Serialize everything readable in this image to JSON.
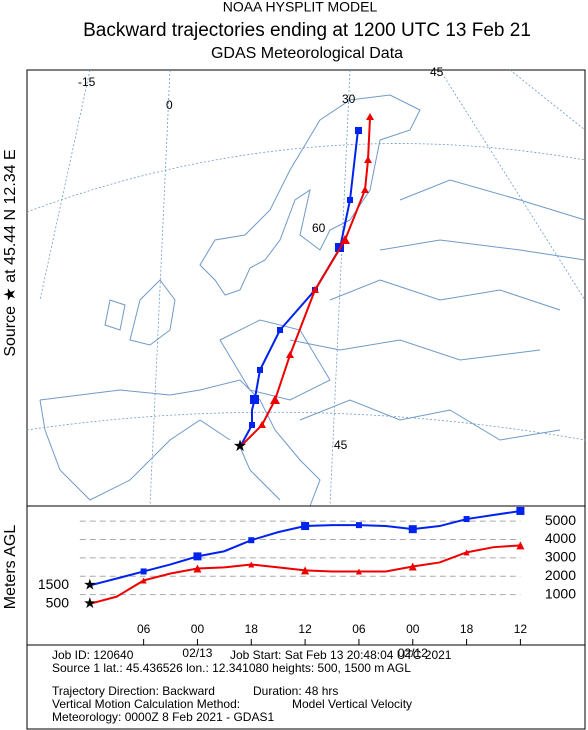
{
  "header": {
    "model": "NOAA HYSPLIT MODEL",
    "title": "Backward trajectories ending at 1200 UTC 13 Feb 21",
    "subtitle": "GDAS Meteorological Data"
  },
  "source_label": "Source ★ at  45.44 N  12.34 E",
  "map": {
    "grid_labels": [
      "-15",
      "0",
      "30",
      "45",
      "60",
      "45"
    ]
  },
  "chart_data": {
    "type": "line",
    "y_label": "Meters AGL",
    "x": [
      0,
      3,
      6,
      9,
      12,
      15,
      18,
      21,
      24,
      27,
      30,
      33,
      36,
      39,
      42,
      45,
      48
    ],
    "xlim": [
      -7,
      55.2
    ],
    "xticks": [
      {
        "value": 6,
        "label": "06"
      },
      {
        "value": 12,
        "label": "00"
      },
      {
        "value": 18,
        "label": "18"
      },
      {
        "value": 24,
        "label": "12"
      },
      {
        "value": 30,
        "label": "06"
      },
      {
        "value": 36,
        "label": "00"
      },
      {
        "value": 42,
        "label": "18"
      },
      {
        "value": 48,
        "label": "12"
      }
    ],
    "dates": [
      {
        "value": 12,
        "label": "02/13"
      },
      {
        "value": 36,
        "label": "02/12"
      }
    ],
    "ylim": [
      -1740,
      5820
    ],
    "yticks": [
      1000,
      2000,
      3000,
      4000,
      5000
    ],
    "series": [
      {
        "name": "1500",
        "color": "#0022ee",
        "marker": "square",
        "values": [
          1500,
          1877,
          2260,
          2640,
          3080,
          3360,
          3960,
          4400,
          4730,
          4780,
          4780,
          4730,
          4560,
          4730,
          5110,
          5330,
          5550
        ]
      },
      {
        "name": "500",
        "color": "#ee0000",
        "marker": "triangle",
        "values": [
          500,
          890,
          1770,
          2150,
          2420,
          2480,
          2640,
          2480,
          2320,
          2260,
          2260,
          2260,
          2530,
          2750,
          3300,
          3580,
          3680
        ]
      }
    ]
  },
  "footer": {
    "job_id": "Job ID: 120640",
    "job_start": "Job Start: Sat Feb 13 20:48:04 UTC 2021",
    "source": "Source 1 lat.: 45.436526  lon.: 12.341080  heights: 500, 1500 m AGL",
    "direction": "Trajectory Direction: Backward",
    "duration": "Duration: 48 hrs",
    "vertical": "Vertical Motion Calculation Method:",
    "vertical_value": "Model Vertical Velocity",
    "meteorology": "Meteorology: 0000Z  8 Feb 2021 - GDAS1"
  }
}
